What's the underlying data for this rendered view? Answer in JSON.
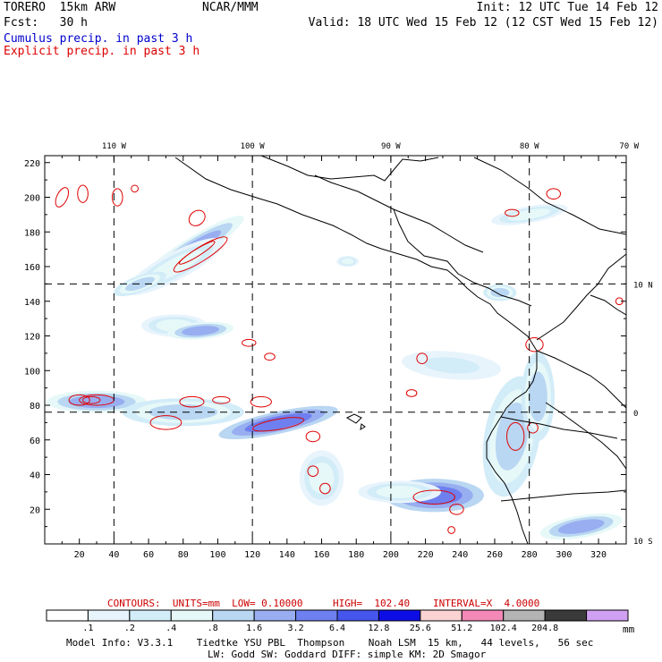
{
  "header": {
    "model": "TORERO  15km ARW",
    "center": "NCAR/MMM",
    "init": "Init: 12 UTC Tue 14 Feb 12",
    "fcst": "Fcst:   30 h",
    "valid": "Valid: 18 UTC Wed 15 Feb 12 (12 CST Wed 15 Feb 12)",
    "cumulus": "Cumulus precip. in past 3 h",
    "explicit": "Explicit precip. in past 3 h"
  },
  "colors": {
    "cumulus_text": "#0000cc",
    "explicit_text": "#dd0000",
    "contour": "#e00000",
    "land": "#000000"
  },
  "chart_data": {
    "type": "heatmap",
    "title": "Cumulus and explicit precipitation in past 3 h",
    "x_ticks": [
      20,
      40,
      60,
      80,
      100,
      120,
      140,
      160,
      180,
      200,
      220,
      240,
      260,
      280,
      300,
      320
    ],
    "y_ticks": [
      20,
      40,
      60,
      80,
      100,
      120,
      140,
      160,
      180,
      200,
      220
    ],
    "xlim": [
      0,
      336
    ],
    "ylim": [
      0,
      224
    ],
    "lon_labels": [
      {
        "text": "110 W",
        "x": 40
      },
      {
        "text": "100 W",
        "x": 120
      },
      {
        "text": "90 W",
        "x": 200
      },
      {
        "text": "80 W",
        "x": 280
      },
      {
        "text": "70 W",
        "x": 360
      }
    ],
    "lat_labels": [
      {
        "text": "10 N",
        "y": 150
      },
      {
        "text": "0",
        "y": 76
      },
      {
        "text": "10 S",
        "y": 2
      }
    ],
    "grid_lines": {
      "x": [
        40,
        120,
        200,
        280
      ],
      "y": [
        76,
        150
      ]
    },
    "precip_areas": [
      {
        "x": 85,
        "y": 170,
        "rx": 22,
        "ry": 4,
        "rot": -32,
        "level": 5
      },
      {
        "x": 75,
        "y": 160,
        "rx": 20,
        "ry": 5,
        "rot": -28,
        "level": 3
      },
      {
        "x": 55,
        "y": 150,
        "rx": 10,
        "ry": 3,
        "rot": -20,
        "level": 4
      },
      {
        "x": 75,
        "y": 126,
        "rx": 12,
        "ry": 4,
        "rot": 0,
        "level": 3
      },
      {
        "x": 90,
        "y": 123,
        "rx": 12,
        "ry": 3,
        "rot": -5,
        "level": 5
      },
      {
        "x": 30,
        "y": 82,
        "rx": 18,
        "ry": 4,
        "rot": 0,
        "level": 5
      },
      {
        "x": 80,
        "y": 76,
        "rx": 22,
        "ry": 5,
        "rot": 0,
        "level": 4
      },
      {
        "x": 135,
        "y": 70,
        "rx": 22,
        "ry": 4,
        "rot": -12,
        "level": 6
      },
      {
        "x": 160,
        "y": 38,
        "rx": 8,
        "ry": 10,
        "rot": 0,
        "level": 3
      },
      {
        "x": 225,
        "y": 28,
        "rx": 18,
        "ry": 6,
        "rot": 0,
        "level": 6
      },
      {
        "x": 205,
        "y": 30,
        "rx": 15,
        "ry": 4,
        "rot": 0,
        "level": 3
      },
      {
        "x": 235,
        "y": 103,
        "rx": 18,
        "ry": 5,
        "rot": 5,
        "level": 2
      },
      {
        "x": 270,
        "y": 62,
        "rx": 10,
        "ry": 22,
        "rot": 10,
        "level": 4
      },
      {
        "x": 285,
        "y": 85,
        "rx": 6,
        "ry": 16,
        "rot": 0,
        "level": 4
      },
      {
        "x": 280,
        "y": 190,
        "rx": 14,
        "ry": 3,
        "rot": -10,
        "level": 3
      },
      {
        "x": 310,
        "y": 10,
        "rx": 15,
        "ry": 4,
        "rot": -10,
        "level": 5
      },
      {
        "x": 263,
        "y": 145,
        "rx": 6,
        "ry": 3,
        "rot": 0,
        "level": 4
      },
      {
        "x": 175,
        "y": 163,
        "rx": 4,
        "ry": 2,
        "rot": 0,
        "level": 3
      }
    ],
    "contours": [
      {
        "x": 90,
        "y": 167,
        "rx": 18,
        "ry": 4,
        "rot": -32
      },
      {
        "x": 88,
        "y": 168,
        "rx": 12,
        "ry": 2,
        "rot": -32
      },
      {
        "x": 30,
        "y": 83,
        "rx": 10,
        "ry": 3,
        "rot": 0
      },
      {
        "x": 20,
        "y": 83,
        "rx": 6,
        "ry": 3,
        "rot": 0
      },
      {
        "x": 27,
        "y": 83,
        "rx": 5,
        "ry": 2,
        "rot": 0
      },
      {
        "x": 70,
        "y": 70,
        "rx": 9,
        "ry": 4,
        "rot": 0
      },
      {
        "x": 85,
        "y": 82,
        "rx": 7,
        "ry": 3,
        "rot": 0
      },
      {
        "x": 102,
        "y": 83,
        "rx": 5,
        "ry": 2,
        "rot": 0
      },
      {
        "x": 125,
        "y": 82,
        "rx": 6,
        "ry": 3,
        "rot": 0
      },
      {
        "x": 135,
        "y": 69,
        "rx": 15,
        "ry": 3,
        "rot": -10
      },
      {
        "x": 155,
        "y": 62,
        "rx": 4,
        "ry": 3,
        "rot": 0
      },
      {
        "x": 162,
        "y": 32,
        "rx": 3,
        "ry": 3,
        "rot": 0
      },
      {
        "x": 155,
        "y": 42,
        "rx": 3,
        "ry": 3,
        "rot": 0
      },
      {
        "x": 225,
        "y": 27,
        "rx": 12,
        "ry": 4,
        "rot": 0
      },
      {
        "x": 238,
        "y": 20,
        "rx": 4,
        "ry": 3,
        "rot": 0
      },
      {
        "x": 235,
        "y": 8,
        "rx": 2,
        "ry": 2,
        "rot": 0
      },
      {
        "x": 218,
        "y": 107,
        "rx": 3,
        "ry": 3,
        "rot": 0
      },
      {
        "x": 283,
        "y": 115,
        "rx": 5,
        "ry": 4,
        "rot": 0
      },
      {
        "x": 272,
        "y": 62,
        "rx": 5,
        "ry": 8,
        "rot": 0
      },
      {
        "x": 282,
        "y": 67,
        "rx": 3,
        "ry": 3,
        "rot": 0
      },
      {
        "x": 294,
        "y": 202,
        "rx": 4,
        "ry": 3,
        "rot": 0
      },
      {
        "x": 270,
        "y": 191,
        "rx": 4,
        "ry": 2,
        "rot": 0
      },
      {
        "x": 10,
        "y": 200,
        "rx": 3,
        "ry": 6,
        "rot": 25
      },
      {
        "x": 22,
        "y": 202,
        "rx": 3,
        "ry": 5,
        "rot": 0
      },
      {
        "x": 42,
        "y": 200,
        "rx": 3,
        "ry": 5,
        "rot": 0
      },
      {
        "x": 52,
        "y": 205,
        "rx": 2,
        "ry": 2,
        "rot": 0
      },
      {
        "x": 88,
        "y": 188,
        "rx": 5,
        "ry": 4,
        "rot": -40
      },
      {
        "x": 118,
        "y": 116,
        "rx": 4,
        "ry": 2,
        "rot": 0
      },
      {
        "x": 130,
        "y": 108,
        "rx": 3,
        "ry": 2,
        "rot": 0
      },
      {
        "x": 212,
        "y": 87,
        "rx": 3,
        "ry": 2,
        "rot": 0
      },
      {
        "x": 332,
        "y": 140,
        "rx": 2,
        "ry": 2,
        "rot": 0
      }
    ],
    "legend": {
      "contours_label": "CONTOURS:  UNITS=mm  LOW= 0.10000",
      "high_label": "HIGH=  102.40",
      "interval_label": "INTERVAL=X  4.0000",
      "bins": [
        {
          "label": ".1",
          "color": "#ffffff"
        },
        {
          "label": ".2",
          "color": "#e8f4fc"
        },
        {
          "label": ".4",
          "color": "#d2ecf8"
        },
        {
          "label": ".8",
          "color": "#e6f8f8"
        },
        {
          "label": "1.6",
          "color": "#b9d6f2"
        },
        {
          "label": "3.2",
          "color": "#98aef0"
        },
        {
          "label": "6.4",
          "color": "#6e7ff0"
        },
        {
          "label": "12.8",
          "color": "#4655ec"
        },
        {
          "label": "25.6",
          "color": "#0d0ee6"
        },
        {
          "label": "51.2",
          "color": "#fbd3d3"
        },
        {
          "label": "102.4",
          "color": "#f489b8"
        },
        {
          "label": "204.8",
          "color": "#b4b4b4"
        },
        {
          "label": "",
          "color": "#3a3a3a"
        },
        {
          "label": "",
          "color": "#d0a0f2"
        }
      ],
      "unit": "mm"
    },
    "model_info_line1": "Model Info: V3.3.1    Tiedtke YSU PBL  Thompson    Noah LSM  15 km,   44 levels,   56 sec",
    "model_info_line2": "LW: Godd SW: Goddard DIFF: simple KM: 2D Smagor"
  }
}
